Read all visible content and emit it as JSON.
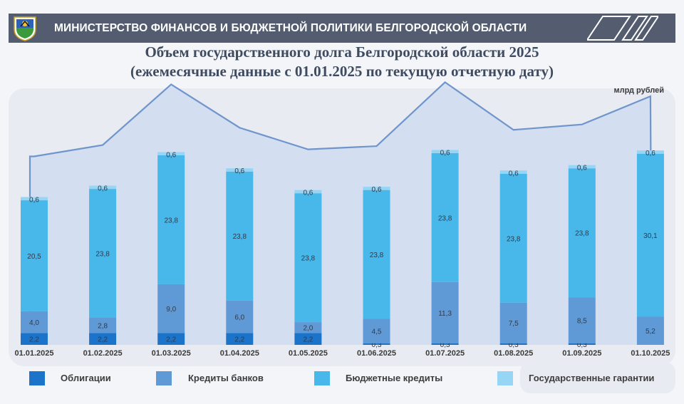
{
  "header": {
    "title": "МИНИСТЕРСТВО ФИНАНСОВ И БЮДЖЕТНОЙ ПОЛИТИКИ БЕЛГОРОДСКОЙ ОБЛАСТИ"
  },
  "colors": {
    "header_bg": "#535d6f",
    "bonds": "#1b74c9",
    "bank_loans": "#5f9ad6",
    "budget_loans": "#48b7ea",
    "guarantees": "#96d5f3",
    "area_fill": "#cfddf0",
    "area_line": "#6f95cc"
  },
  "chart_data": {
    "type": "bar",
    "stacked": true,
    "title": "Объем государственного долга Белгородской области 2025",
    "subtitle": "(ежемесячные данные с 01.01.2025 по текущую отчетную дату)",
    "unit_label": "млрд рублей",
    "categories": [
      "01.01.2025",
      "01.02.2025",
      "01.03.2025",
      "01.04.2025",
      "01.05.2025",
      "01.06.2025",
      "01.07.2025",
      "01.08.2025",
      "01.09.2025",
      "01.10.2025"
    ],
    "series": [
      {
        "name": "Облигации",
        "values": [
          2.2,
          2.2,
          2.2,
          2.2,
          2.2,
          0.3,
          0.3,
          0.3,
          0.3,
          0.0
        ],
        "labels": [
          "2,2",
          "2,2",
          "2,2",
          "2,2",
          "2,2",
          "0,3",
          "0,3",
          "0,3",
          "0,3",
          ""
        ]
      },
      {
        "name": "Кредиты банков",
        "values": [
          4.0,
          2.8,
          9.0,
          6.0,
          2.0,
          4.5,
          11.3,
          7.5,
          8.5,
          5.2
        ],
        "labels": [
          "4,0",
          "2,8",
          "9,0",
          "6,0",
          "2,0",
          "4,5",
          "11,3",
          "7,5",
          "8,5",
          "5,2"
        ]
      },
      {
        "name": "Бюджетные кредиты",
        "values": [
          20.5,
          23.8,
          23.8,
          23.8,
          23.8,
          23.8,
          23.8,
          23.8,
          23.8,
          30.1
        ],
        "labels": [
          "20,5",
          "23,8",
          "23,8",
          "23,8",
          "23,8",
          "23,8",
          "23,8",
          "23,8",
          "23,8",
          "30,1"
        ]
      },
      {
        "name": "Государственные гарантии",
        "values": [
          0.6,
          0.6,
          0.6,
          0.6,
          0.6,
          0.6,
          0.6,
          0.6,
          0.6,
          0.6
        ],
        "labels": [
          "0,6",
          "0,6",
          "0,6",
          "0,6",
          "0,6",
          "0,6",
          "0,6",
          "0,6",
          "0,6",
          "0,6"
        ]
      }
    ],
    "legend": [
      "Облигации",
      "Кредиты банков",
      "Бюджетные кредиты",
      "Государственные гарантии"
    ],
    "ylim": [
      0,
      45
    ],
    "grid": false,
    "legend_position": "bottom"
  }
}
